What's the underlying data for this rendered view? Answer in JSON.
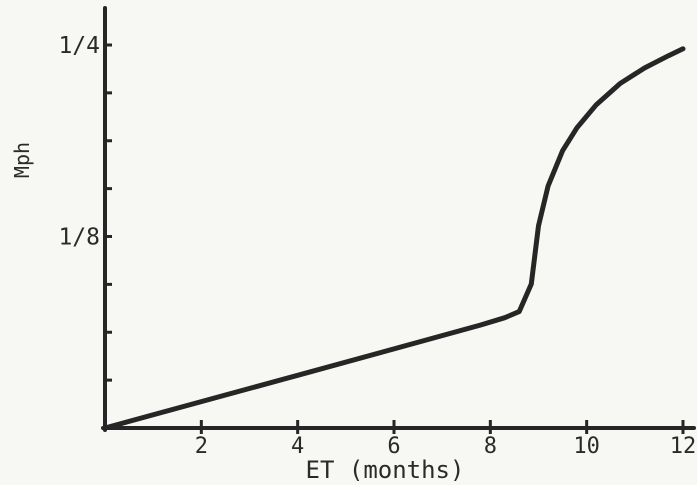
{
  "chart_data": {
    "type": "line",
    "title": "",
    "xlabel": "ET (months)",
    "ylabel": "Mph",
    "xlim": [
      0,
      12
    ],
    "ylim": [
      0,
      0.25
    ],
    "x_tick_labels": [
      {
        "value": 2,
        "label": "2"
      },
      {
        "value": 4,
        "label": "4"
      },
      {
        "value": 6,
        "label": "6"
      },
      {
        "value": 8,
        "label": "8"
      },
      {
        "value": 10,
        "label": "10"
      },
      {
        "value": 12,
        "label": "12"
      }
    ],
    "y_tick_labels": [
      {
        "value": 0.125,
        "label": "1/8"
      },
      {
        "value": 0.25,
        "label": "1/4"
      }
    ],
    "y_minor_ticks": [
      0.03125,
      0.0625,
      0.09375,
      0.15625,
      0.1875,
      0.21875
    ],
    "grid": false,
    "series": [
      {
        "x": [
          0,
          2,
          4,
          6,
          7.8,
          8.3,
          8.6,
          8.85,
          9.0,
          9.2,
          9.5,
          9.8,
          10.2,
          10.7,
          11.2,
          11.7,
          12.0
        ],
        "y": [
          0,
          0.0172,
          0.0344,
          0.0516,
          0.0672,
          0.072,
          0.076,
          0.094,
          0.132,
          0.158,
          0.181,
          0.196,
          0.211,
          0.225,
          0.235,
          0.243,
          0.2475
        ]
      }
    ],
    "colors": {
      "line": "#262626",
      "axis": "#262626"
    }
  }
}
